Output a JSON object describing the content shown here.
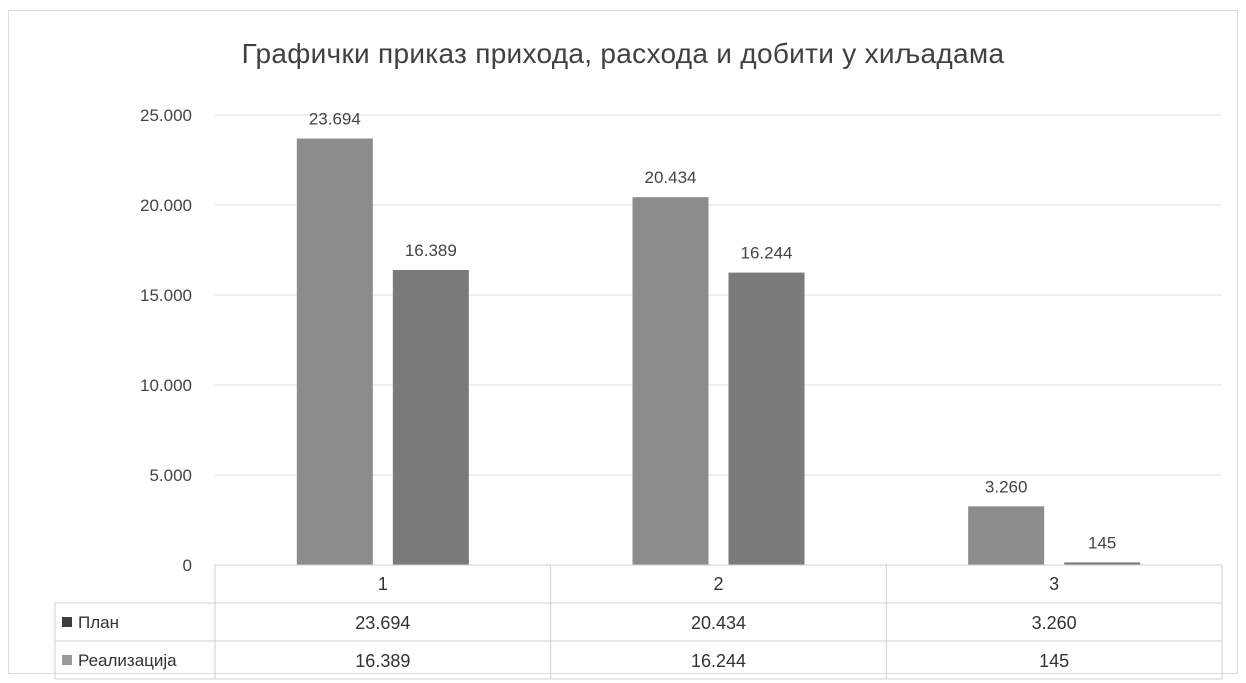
{
  "chart_data": {
    "type": "bar",
    "title": "Графички приказ прихода, расхода и добити у хиљадама",
    "xlabel": "",
    "ylabel": "",
    "categories": [
      "1",
      "2",
      "3"
    ],
    "series": [
      {
        "name": "План",
        "values": [
          23694,
          20434,
          3260
        ],
        "labels": [
          "23.694",
          "20.434",
          "3.260"
        ],
        "color": "#8c8c8c"
      },
      {
        "name": "Реализација",
        "values": [
          16389,
          16244,
          145
        ],
        "labels": [
          "16.389",
          "16.244",
          "145"
        ],
        "color": "#7a7a7a"
      }
    ],
    "ylim": [
      0,
      25000
    ],
    "yticks": [
      0,
      5000,
      10000,
      15000,
      20000,
      25000
    ],
    "ytick_labels": [
      "0",
      "5.000",
      "10.000",
      "15.000",
      "20.000",
      "25.000"
    ],
    "grid": true,
    "legend": "data-table"
  }
}
